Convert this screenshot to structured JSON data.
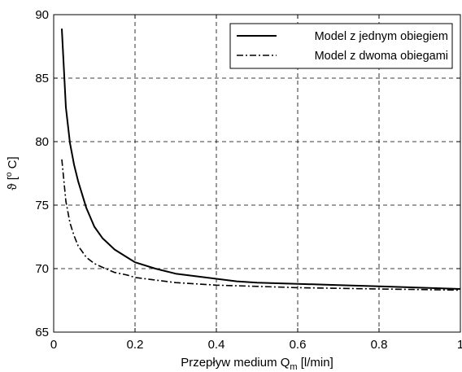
{
  "chart_data": {
    "type": "line",
    "title": "",
    "xlabel": {
      "main": "Przepływ medium Q",
      "sub": "m",
      "after": " [l/min]"
    },
    "ylabel": {
      "symbol": "ϑ",
      "open": " [",
      "sup": "o",
      "after": " C]"
    },
    "xlim": [
      0,
      1
    ],
    "ylim": [
      65,
      90
    ],
    "xticks": [
      0,
      0.2,
      0.4,
      0.6,
      0.8,
      1
    ],
    "xtick_labels": [
      "0",
      "0.2",
      "0.4",
      "0.6",
      "0.8",
      "1"
    ],
    "yticks": [
      65,
      70,
      75,
      80,
      85,
      90
    ],
    "ytick_labels": [
      "65",
      "70",
      "75",
      "80",
      "85",
      "90"
    ],
    "grid": true,
    "legend_position": "top-right",
    "series": [
      {
        "name": "Model z jednym obiegiem",
        "style": "solid",
        "color": "#000000",
        "x": [
          0.02,
          0.03,
          0.04,
          0.05,
          0.06,
          0.08,
          0.1,
          0.12,
          0.15,
          0.18,
          0.2,
          0.25,
          0.3,
          0.35,
          0.4,
          0.45,
          0.5,
          0.6,
          0.7,
          0.8,
          0.9,
          1.0
        ],
        "y": [
          88.9,
          82.7,
          79.9,
          78.2,
          76.9,
          74.8,
          73.3,
          72.4,
          71.5,
          70.9,
          70.5,
          70.0,
          69.6,
          69.4,
          69.2,
          69.0,
          68.9,
          68.8,
          68.7,
          68.6,
          68.5,
          68.4
        ]
      },
      {
        "name": "Model z dwoma obiegami",
        "style": "dashdot",
        "color": "#000000",
        "x": [
          0.02,
          0.03,
          0.04,
          0.05,
          0.06,
          0.08,
          0.1,
          0.12,
          0.15,
          0.18,
          0.2,
          0.25,
          0.3,
          0.35,
          0.4,
          0.5,
          0.6,
          0.7,
          0.8,
          0.9,
          1.0
        ],
        "y": [
          78.6,
          75.3,
          73.6,
          72.6,
          71.8,
          70.9,
          70.4,
          70.1,
          69.7,
          69.5,
          69.3,
          69.1,
          68.9,
          68.8,
          68.7,
          68.6,
          68.5,
          68.45,
          68.4,
          68.35,
          68.3
        ]
      }
    ]
  }
}
